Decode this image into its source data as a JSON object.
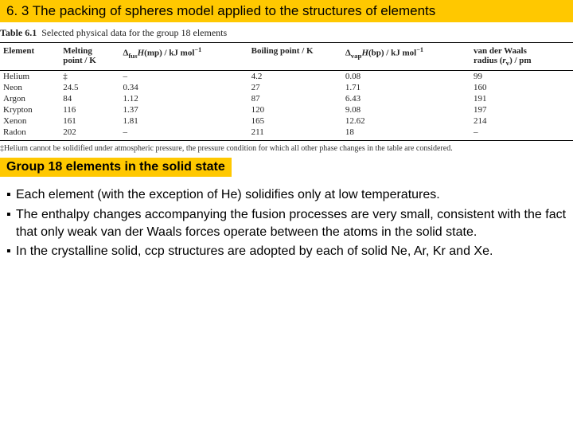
{
  "title": "6. 3 The packing of spheres model applied to the structures of elements",
  "caption_bold": "Table 6.1",
  "caption_rest": "  Selected physical data for the group 18 elements",
  "columns": {
    "c0": "Element",
    "c1a": "Melting",
    "c1b": "point / K",
    "c2": "ΔfusH(mp) / kJ mol⁻¹",
    "c3": "Boiling point / K",
    "c4": "ΔvapH(bp) / kJ mol⁻¹",
    "c5a": "van der Waals",
    "c5b": "radius (rᵥ) / pm"
  },
  "rows": [
    {
      "el": "Helium",
      "mp": "‡",
      "dh1": "–",
      "bp": "4.2",
      "dh2": "0.08",
      "vdw": "99"
    },
    {
      "el": "Neon",
      "mp": "24.5",
      "dh1": "0.34",
      "bp": "27",
      "dh2": "1.71",
      "vdw": "160"
    },
    {
      "el": "Argon",
      "mp": "84",
      "dh1": "1.12",
      "bp": "87",
      "dh2": "6.43",
      "vdw": "191"
    },
    {
      "el": "Krypton",
      "mp": "116",
      "dh1": "1.37",
      "bp": "120",
      "dh2": "9.08",
      "vdw": "197"
    },
    {
      "el": "Xenon",
      "mp": "161",
      "dh1": "1.81",
      "bp": "165",
      "dh2": "12.62",
      "vdw": "214"
    },
    {
      "el": "Radon",
      "mp": "202",
      "dh1": "–",
      "bp": "211",
      "dh2": "18",
      "vdw": "–"
    }
  ],
  "footnote": "‡Helium cannot be solidified under atmospheric pressure, the pressure condition for which all other phase changes in the table are considered.",
  "subtitle": "Group 18 elements in the solid state",
  "bullets": [
    "Each element (with the exception of He) solidifies only at low temperatures.",
    "The enthalpy changes accompanying the fusion processes are very small, consistent with the fact that only weak van der Waals forces operate between the atoms in the solid state.",
    " In the crystalline solid, ccp structures are adopted by each of solid Ne, Ar, Kr and Xe."
  ],
  "bullet_marker": "▪"
}
